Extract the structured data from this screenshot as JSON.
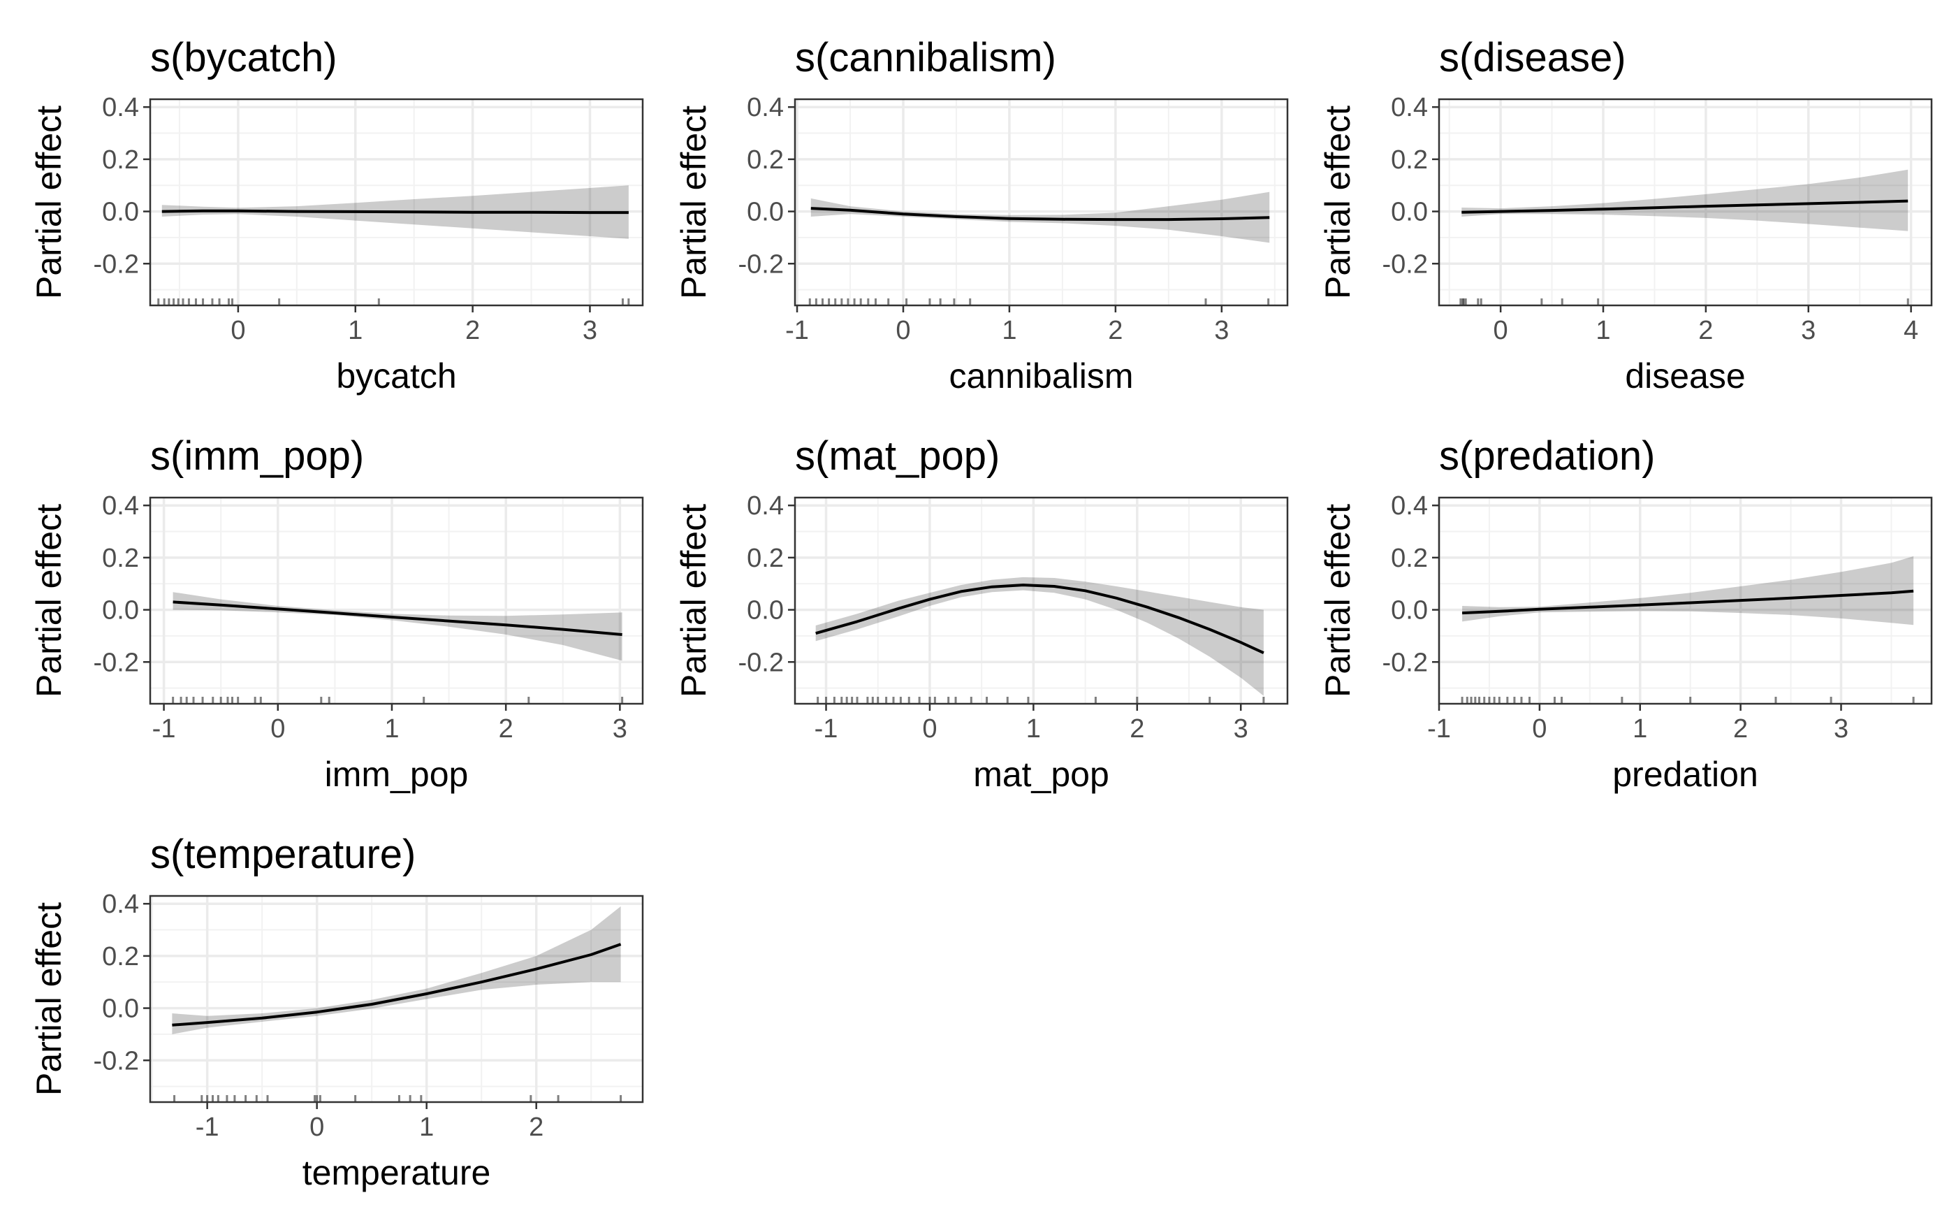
{
  "figure": {
    "type": "gam-partial-effects",
    "y_label": "Partial effect"
  },
  "chart_data": [
    {
      "type": "line",
      "title": "s(bycatch)",
      "xlabel": "bycatch",
      "ylabel": "Partial effect",
      "xlim": [
        -0.75,
        3.45
      ],
      "ylim": [
        -0.36,
        0.43
      ],
      "xticks": [
        0,
        1,
        2,
        3
      ],
      "yticks": [
        -0.2,
        0.0,
        0.2,
        0.4
      ],
      "ytick_labels": [
        "-0.2",
        "0.0",
        "0.2",
        "0.4"
      ],
      "grid": true,
      "x": [
        -0.65,
        -0.3,
        0.0,
        0.5,
        1.0,
        1.5,
        2.0,
        2.5,
        3.0,
        3.33
      ],
      "fit": [
        0.0,
        0.002,
        0.002,
        0.0,
        -0.001,
        -0.002,
        -0.003,
        -0.003,
        -0.004,
        -0.004
      ],
      "lower": [
        -0.02,
        -0.012,
        -0.01,
        -0.02,
        -0.035,
        -0.05,
        -0.065,
        -0.08,
        -0.095,
        -0.105
      ],
      "upper": [
        0.025,
        0.018,
        0.014,
        0.02,
        0.033,
        0.047,
        0.06,
        0.075,
        0.09,
        0.1
      ],
      "rug": [
        -0.68,
        -0.63,
        -0.59,
        -0.55,
        -0.51,
        -0.47,
        -0.42,
        -0.36,
        -0.3,
        -0.22,
        -0.16,
        -0.08,
        -0.05,
        0.35,
        1.2,
        3.28,
        3.33
      ]
    },
    {
      "type": "line",
      "title": "s(cannibalism)",
      "xlabel": "cannibalism",
      "ylabel": "Partial effect",
      "xlim": [
        -1.02,
        3.62
      ],
      "ylim": [
        -0.36,
        0.43
      ],
      "xticks": [
        -1,
        0,
        1,
        2,
        3
      ],
      "yticks": [
        -0.2,
        0.0,
        0.2,
        0.4
      ],
      "ytick_labels": [
        "-0.2",
        "0.0",
        "0.2",
        "0.4"
      ],
      "grid": true,
      "x": [
        -0.87,
        -0.5,
        0.0,
        0.5,
        1.0,
        1.5,
        2.0,
        2.5,
        3.0,
        3.45
      ],
      "fit": [
        0.012,
        0.005,
        -0.01,
        -0.02,
        -0.027,
        -0.03,
        -0.031,
        -0.031,
        -0.028,
        -0.023
      ],
      "lower": [
        -0.02,
        -0.01,
        -0.02,
        -0.03,
        -0.04,
        -0.045,
        -0.055,
        -0.07,
        -0.095,
        -0.12
      ],
      "upper": [
        0.05,
        0.02,
        0.0,
        -0.01,
        -0.014,
        -0.013,
        -0.005,
        0.02,
        0.045,
        0.075
      ],
      "rug": [
        -0.88,
        -0.82,
        -0.76,
        -0.7,
        -0.64,
        -0.58,
        -0.52,
        -0.46,
        -0.4,
        -0.33,
        -0.26,
        -0.14,
        0.03,
        0.25,
        0.35,
        0.48,
        0.63,
        2.85,
        3.44
      ]
    },
    {
      "type": "line",
      "title": "s(disease)",
      "xlabel": "disease",
      "ylabel": "Partial effect",
      "xlim": [
        -0.6,
        4.2
      ],
      "ylim": [
        -0.36,
        0.43
      ],
      "xticks": [
        0,
        1,
        2,
        3,
        4
      ],
      "yticks": [
        -0.2,
        0.0,
        0.2,
        0.4
      ],
      "ytick_labels": [
        "-0.2",
        "0.0",
        "0.2",
        "0.4"
      ],
      "grid": true,
      "x": [
        -0.38,
        0.0,
        0.5,
        1.0,
        1.5,
        2.0,
        2.5,
        3.0,
        3.5,
        3.97
      ],
      "fit": [
        -0.003,
        0.0,
        0.004,
        0.009,
        0.014,
        0.02,
        0.025,
        0.03,
        0.035,
        0.04
      ],
      "lower": [
        -0.02,
        -0.01,
        -0.01,
        -0.012,
        -0.018,
        -0.025,
        -0.035,
        -0.048,
        -0.062,
        -0.075
      ],
      "upper": [
        0.015,
        0.012,
        0.02,
        0.032,
        0.048,
        0.066,
        0.085,
        0.105,
        0.13,
        0.16
      ],
      "rug": [
        -0.39,
        -0.37,
        -0.36,
        -0.34,
        -0.22,
        -0.19,
        0.4,
        0.6,
        0.95,
        3.97
      ]
    },
    {
      "type": "line",
      "title": "s(imm_pop)",
      "xlabel": "imm_pop",
      "ylabel": "Partial effect",
      "xlim": [
        -1.12,
        3.2
      ],
      "ylim": [
        -0.36,
        0.43
      ],
      "xticks": [
        -1,
        0,
        1,
        2,
        3
      ],
      "yticks": [
        -0.2,
        0.0,
        0.2,
        0.4
      ],
      "ytick_labels": [
        "-0.2",
        "0.0",
        "0.2",
        "0.4"
      ],
      "grid": true,
      "x": [
        -0.92,
        -0.5,
        0.0,
        0.5,
        1.0,
        1.5,
        2.0,
        2.5,
        3.02
      ],
      "fit": [
        0.03,
        0.018,
        0.003,
        -0.012,
        -0.028,
        -0.043,
        -0.058,
        -0.075,
        -0.095
      ],
      "lower": [
        0.0,
        -0.002,
        -0.01,
        -0.02,
        -0.04,
        -0.065,
        -0.095,
        -0.135,
        -0.195
      ],
      "upper": [
        0.068,
        0.04,
        0.015,
        -0.002,
        -0.015,
        -0.022,
        -0.023,
        -0.018,
        -0.01
      ],
      "rug": [
        -0.92,
        -0.85,
        -0.8,
        -0.74,
        -0.66,
        -0.57,
        -0.5,
        -0.44,
        -0.4,
        -0.35,
        -0.2,
        -0.15,
        0.38,
        0.45,
        1.28,
        2.2,
        3.02
      ]
    },
    {
      "type": "line",
      "title": "s(mat_pop)",
      "xlabel": "mat_pop",
      "ylabel": "Partial effect",
      "xlim": [
        -1.3,
        3.45
      ],
      "ylim": [
        -0.36,
        0.43
      ],
      "xticks": [
        -1,
        0,
        1,
        2,
        3
      ],
      "yticks": [
        -0.2,
        0.0,
        0.2,
        0.4
      ],
      "ytick_labels": [
        "-0.2",
        "0.0",
        "0.2",
        "0.4"
      ],
      "grid": true,
      "x": [
        -1.1,
        -0.7,
        -0.3,
        0.0,
        0.3,
        0.6,
        0.9,
        1.2,
        1.5,
        1.8,
        2.1,
        2.4,
        2.7,
        3.0,
        3.22
      ],
      "fit": [
        -0.09,
        -0.045,
        0.005,
        0.04,
        0.07,
        0.088,
        0.095,
        0.09,
        0.073,
        0.045,
        0.01,
        -0.03,
        -0.075,
        -0.125,
        -0.165
      ],
      "lower": [
        -0.12,
        -0.075,
        -0.025,
        0.015,
        0.048,
        0.068,
        0.075,
        0.065,
        0.04,
        0.0,
        -0.05,
        -0.11,
        -0.18,
        -0.26,
        -0.33
      ],
      "upper": [
        -0.06,
        -0.015,
        0.035,
        0.065,
        0.095,
        0.115,
        0.125,
        0.122,
        0.108,
        0.09,
        0.07,
        0.05,
        0.03,
        0.01,
        0.0
      ],
      "rug": [
        -1.08,
        -1.0,
        -0.92,
        -0.85,
        -0.8,
        -0.75,
        -0.7,
        -0.6,
        -0.55,
        -0.5,
        -0.42,
        -0.35,
        -0.28,
        -0.2,
        -0.1,
        0.0,
        0.05,
        0.18,
        0.25,
        0.4,
        0.55,
        0.75,
        0.95,
        1.6,
        2.0,
        2.7,
        3.22
      ]
    },
    {
      "type": "line",
      "title": "s(predation)",
      "xlabel": "predation",
      "ylabel": "Partial effect",
      "xlim": [
        -1.0,
        3.9
      ],
      "ylim": [
        -0.36,
        0.43
      ],
      "xticks": [
        -1,
        0,
        1,
        2,
        3
      ],
      "yticks": [
        -0.2,
        0.0,
        0.2,
        0.4
      ],
      "ytick_labels": [
        "-0.2",
        "0.0",
        "0.2",
        "0.4"
      ],
      "grid": true,
      "x": [
        -0.77,
        -0.4,
        0.0,
        0.5,
        1.0,
        1.5,
        2.0,
        2.5,
        3.0,
        3.5,
        3.72
      ],
      "fit": [
        -0.012,
        -0.006,
        0.002,
        0.01,
        0.018,
        0.027,
        0.036,
        0.045,
        0.055,
        0.065,
        0.072
      ],
      "lower": [
        -0.045,
        -0.025,
        -0.01,
        -0.007,
        -0.005,
        -0.006,
        -0.012,
        -0.02,
        -0.033,
        -0.05,
        -0.058
      ],
      "upper": [
        0.015,
        0.01,
        0.012,
        0.028,
        0.045,
        0.065,
        0.09,
        0.115,
        0.145,
        0.18,
        0.205
      ],
      "rug": [
        -0.77,
        -0.72,
        -0.68,
        -0.64,
        -0.6,
        -0.55,
        -0.5,
        -0.45,
        -0.4,
        -0.32,
        -0.25,
        -0.18,
        -0.1,
        0.15,
        0.22,
        0.82,
        1.5,
        2.35,
        2.9,
        3.72
      ]
    },
    {
      "type": "line",
      "title": "s(temperature)",
      "xlabel": "temperature",
      "ylabel": "Partial effect",
      "xlim": [
        -1.52,
        2.97
      ],
      "ylim": [
        -0.36,
        0.43
      ],
      "xticks": [
        -1,
        0,
        1,
        2
      ],
      "yticks": [
        -0.2,
        0.0,
        0.2,
        0.4
      ],
      "ytick_labels": [
        "-0.2",
        "0.0",
        "0.2",
        "0.4"
      ],
      "grid": true,
      "x": [
        -1.32,
        -1.0,
        -0.5,
        0.0,
        0.5,
        1.0,
        1.5,
        2.0,
        2.5,
        2.77
      ],
      "fit": [
        -0.065,
        -0.055,
        -0.038,
        -0.015,
        0.015,
        0.055,
        0.1,
        0.15,
        0.205,
        0.245
      ],
      "lower": [
        -0.1,
        -0.075,
        -0.052,
        -0.03,
        -0.002,
        0.035,
        0.07,
        0.09,
        0.1,
        0.1
      ],
      "upper": [
        -0.02,
        -0.03,
        -0.02,
        0.0,
        0.032,
        0.075,
        0.135,
        0.2,
        0.3,
        0.39
      ],
      "rug": [
        -1.3,
        -1.05,
        -1.0,
        -0.95,
        -0.9,
        -0.82,
        -0.75,
        -0.65,
        -0.55,
        -0.45,
        -0.02,
        0.0,
        0.03,
        0.35,
        0.75,
        0.85,
        0.95,
        1.95,
        2.2,
        2.77
      ]
    }
  ]
}
